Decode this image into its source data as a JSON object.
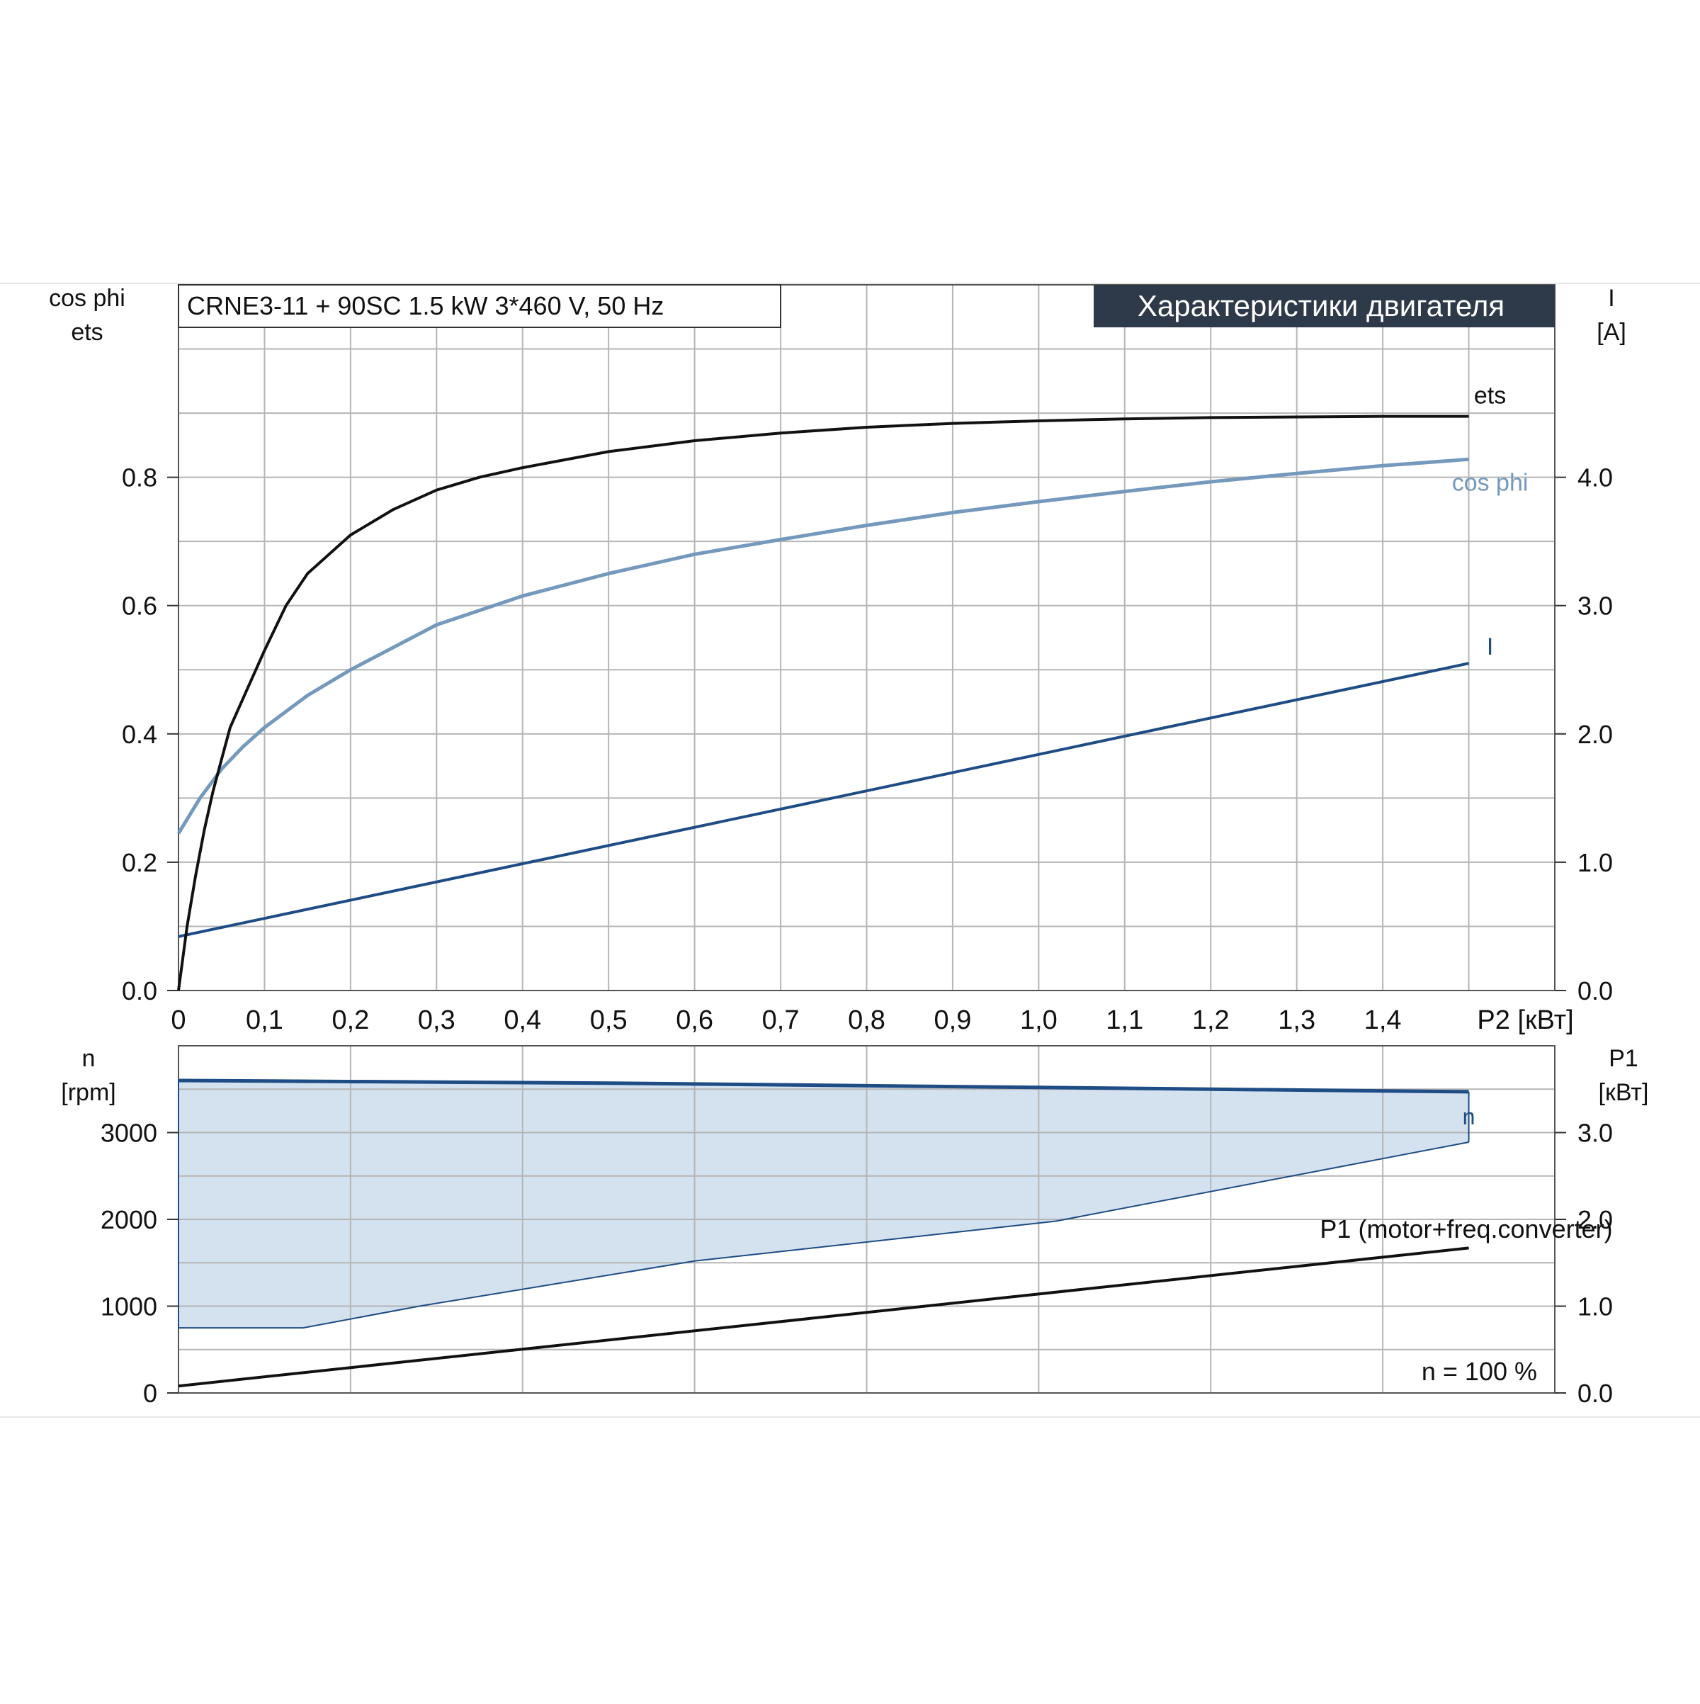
{
  "chart_data": [
    {
      "type": "line",
      "title": "CRNE3-11 + 90SC   1.5 kW   3*460 V, 50 Hz",
      "badge": "Характеристики двигателя",
      "colors": {
        "grid": "#b5b5b5",
        "ets": "#111111",
        "cosphi": "#7499bd",
        "current": "#1e4c84",
        "badge_bg": "#2e3a4a",
        "badge_text": "#ffffff"
      },
      "xlabel": "P2 [кВт]",
      "xlim": [
        0,
        1.6
      ],
      "x_ticks": [
        "0",
        "0,1",
        "0,2",
        "0,3",
        "0,4",
        "0,5",
        "0,6",
        "0,7",
        "0,8",
        "0,9",
        "1,0",
        "1,1",
        "1,2",
        "1,3",
        "1,4"
      ],
      "y_left_label": [
        "cos phi",
        "ets"
      ],
      "y_left_lim": [
        0,
        1.1
      ],
      "y_left_ticks": [
        "0.0",
        "0.2",
        "0.4",
        "0.6",
        "0.8"
      ],
      "y_right_label": [
        "I",
        "[A]"
      ],
      "y_right_lim": [
        0,
        5.5
      ],
      "y_right_ticks": [
        "0.0",
        "1.0",
        "2.0",
        "3.0",
        "4.0"
      ],
      "grid": true,
      "series": [
        {
          "name": "ets",
          "axis": "left",
          "x": [
            0,
            0.01,
            0.02,
            0.03,
            0.04,
            0.05,
            0.06,
            0.08,
            0.1,
            0.125,
            0.15,
            0.2,
            0.25,
            0.3,
            0.35,
            0.4,
            0.5,
            0.6,
            0.7,
            0.8,
            0.9,
            1.0,
            1.1,
            1.2,
            1.3,
            1.4,
            1.5
          ],
          "values": [
            0.0,
            0.1,
            0.18,
            0.25,
            0.31,
            0.36,
            0.41,
            0.47,
            0.53,
            0.6,
            0.65,
            0.71,
            0.75,
            0.78,
            0.8,
            0.815,
            0.84,
            0.857,
            0.869,
            0.878,
            0.884,
            0.888,
            0.891,
            0.893,
            0.894,
            0.895,
            0.895
          ]
        },
        {
          "name": "cos phi",
          "axis": "left",
          "x": [
            0,
            0.025,
            0.05,
            0.075,
            0.1,
            0.15,
            0.2,
            0.3,
            0.4,
            0.5,
            0.6,
            0.7,
            0.8,
            0.9,
            1.0,
            1.1,
            1.2,
            1.3,
            1.4,
            1.5
          ],
          "values": [
            0.245,
            0.3,
            0.345,
            0.38,
            0.41,
            0.46,
            0.5,
            0.57,
            0.615,
            0.65,
            0.68,
            0.703,
            0.725,
            0.745,
            0.762,
            0.778,
            0.793,
            0.806,
            0.818,
            0.828
          ]
        },
        {
          "name": "I",
          "axis": "right",
          "x": [
            0,
            1.5
          ],
          "values": [
            0.42,
            2.55
          ]
        }
      ]
    },
    {
      "type": "area",
      "xlim": [
        0,
        1.6
      ],
      "colors": {
        "band_fill": "#d4e1ee",
        "speed": "#1e4c84",
        "min_speed": "#1e4c84",
        "p1": "#111111"
      },
      "y_left_label": [
        "n",
        "[rpm]"
      ],
      "y_left_lim": [
        0,
        4000
      ],
      "y_left_ticks": [
        "0",
        "1000",
        "2000",
        "3000"
      ],
      "y_right_label": [
        "P1",
        "[кВт]"
      ],
      "y_right_lim": [
        0,
        4.0
      ],
      "y_right_ticks": [
        "0.0",
        "1.0",
        "2.0",
        "3.0"
      ],
      "note": "n = 100 %",
      "grid": true,
      "series": [
        {
          "name": "n",
          "axis": "left",
          "x": [
            0,
            0.5,
            1.0,
            1.5
          ],
          "values": [
            3600,
            3570,
            3520,
            3470
          ]
        },
        {
          "axis": "left",
          "x": [
            0,
            0.145,
            0.28,
            0.6,
            1.02,
            1.5
          ],
          "values": [
            750,
            750,
            1000,
            1520,
            1980,
            2890
          ]
        },
        {
          "name": "P1 (motor+freq.converter)",
          "axis": "right",
          "x": [
            0,
            1.5
          ],
          "values": [
            0.08,
            1.67
          ]
        }
      ]
    }
  ]
}
